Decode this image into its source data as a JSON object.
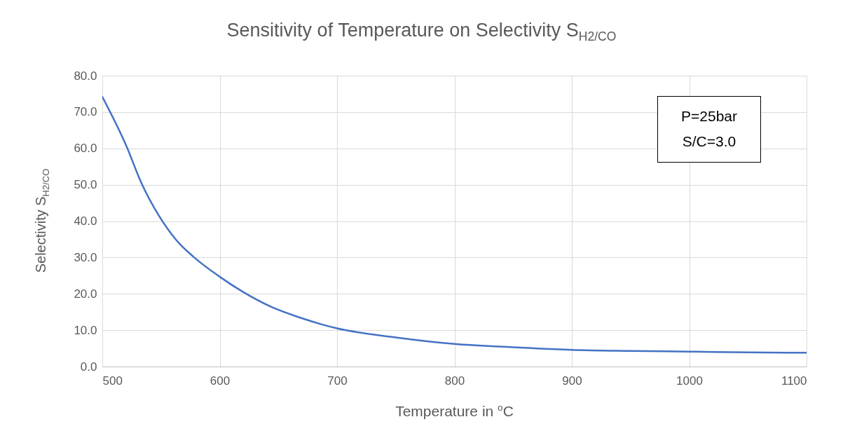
{
  "chart_data": {
    "type": "line",
    "title": "Sensitivity of Temperature on Selectivity S$_{H2/CO}$",
    "xlabel": "Temperature in $^{o}$C",
    "ylabel": "Selectivity S$_{H2/CO}$",
    "x": [
      500,
      521,
      533,
      548,
      563,
      578,
      600,
      620,
      644,
      669,
      688,
      700,
      750,
      800,
      850,
      900,
      950,
      1000,
      1050,
      1100
    ],
    "series": [
      {
        "color": "#4472c4",
        "values": [
          74.2,
          60.3,
          50.7,
          41.6,
          34.8,
          30.1,
          24.7,
          20.5,
          16.4,
          13.4,
          11.5,
          10.5,
          8.0,
          6.2,
          5.3,
          4.6,
          4.3,
          4.1,
          3.9,
          3.8
        ]
      }
    ],
    "xlim": [
      500,
      1100
    ],
    "xticks": [
      500,
      600,
      700,
      800,
      900,
      1000,
      1100
    ],
    "ylim": [
      0,
      80
    ],
    "yticks": [
      {
        "value": 0,
        "label": "0.0"
      },
      {
        "value": 10,
        "label": "10.0"
      },
      {
        "value": 20,
        "label": "20.0"
      },
      {
        "value": 30,
        "label": "30.0"
      },
      {
        "value": 40,
        "label": "40.0"
      },
      {
        "value": 50,
        "label": "50.0"
      },
      {
        "value": 60,
        "label": "60.0"
      },
      {
        "value": 70,
        "label": "70.0"
      },
      {
        "value": 80,
        "label": "80.0"
      }
    ],
    "grid": true,
    "annotations": [
      "P=25bar",
      "S/C=3.0"
    ]
  }
}
